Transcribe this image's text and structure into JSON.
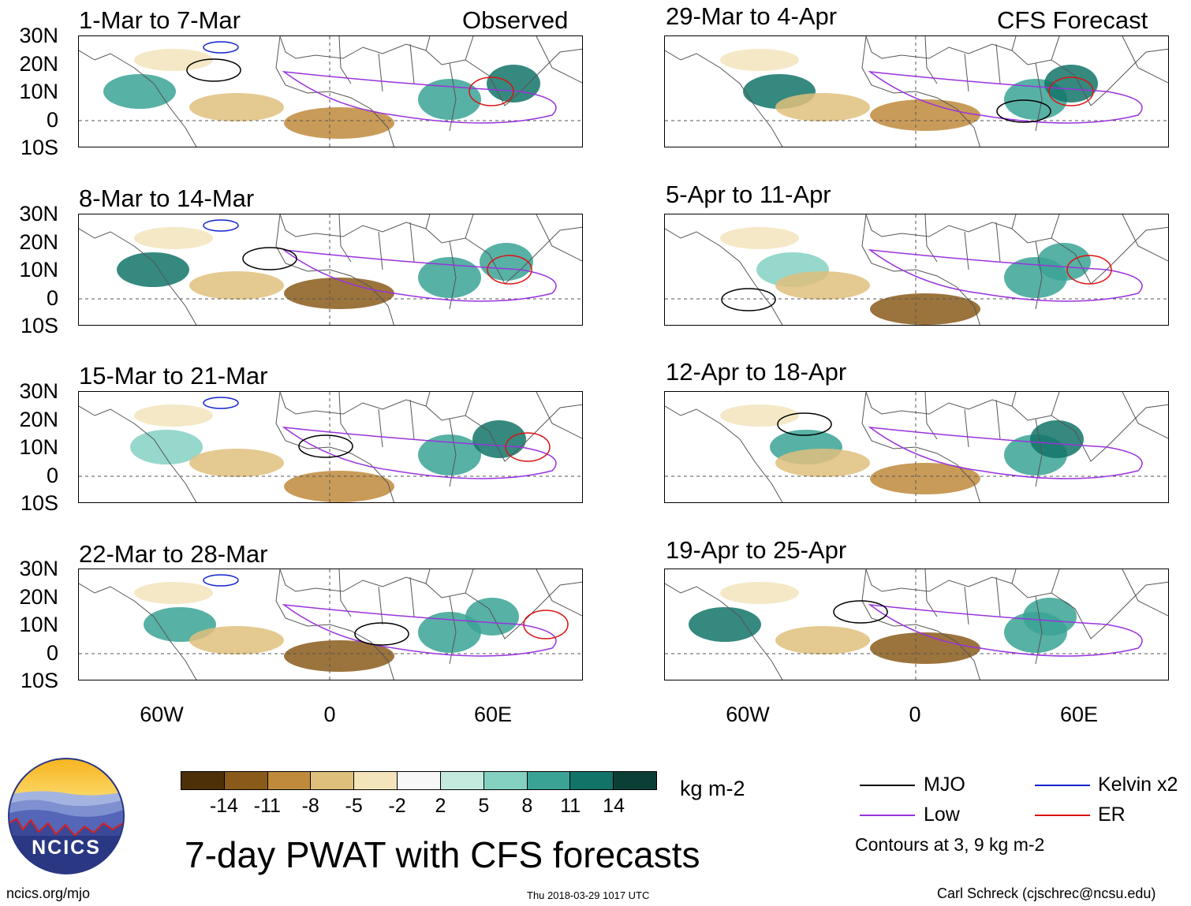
{
  "header": {
    "observed_label": "Observed",
    "forecast_label": "CFS Forecast"
  },
  "panels": [
    {
      "id": "p1",
      "column": "observed",
      "period": "1-Mar to 7-Mar"
    },
    {
      "id": "p2",
      "column": "observed",
      "period": "8-Mar to 14-Mar"
    },
    {
      "id": "p3",
      "column": "observed",
      "period": "15-Mar to 21-Mar"
    },
    {
      "id": "p4",
      "column": "observed",
      "period": "22-Mar to 28-Mar"
    },
    {
      "id": "p5",
      "column": "forecast",
      "period": "29-Mar to 4-Apr"
    },
    {
      "id": "p6",
      "column": "forecast",
      "period": "5-Apr to 11-Apr"
    },
    {
      "id": "p7",
      "column": "forecast",
      "period": "12-Apr to 18-Apr"
    },
    {
      "id": "p8",
      "column": "forecast",
      "period": "19-Apr to 25-Apr"
    }
  ],
  "axes": {
    "lat_labels": [
      "30N",
      "20N",
      "10N",
      "0",
      "10S"
    ],
    "lon_labels": [
      "60W",
      "0",
      "60E"
    ]
  },
  "colorbar": {
    "unit": "kg m-2",
    "tick_labels": [
      "-14",
      "-11",
      "-8",
      "-5",
      "-2",
      "2",
      "5",
      "8",
      "11",
      "14"
    ],
    "colors": [
      "#4d3008",
      "#8a5a1a",
      "#bf8a3c",
      "#dfbf7c",
      "#f3e4bc",
      "#f7f7f7",
      "#c4eade",
      "#84d1c2",
      "#3aa395",
      "#127468",
      "#0b3f36"
    ]
  },
  "legend": {
    "mjo": "MJO",
    "low": "Low",
    "kelvin": "Kelvin x2",
    "er": "ER",
    "note": "Contours at 3, 9 kg m-2",
    "colors": {
      "mjo": "#000000",
      "low": "#9933dd",
      "kelvin": "#1122cc",
      "er": "#dd1111"
    }
  },
  "footer": {
    "main_title": "7-day PWAT with CFS forecasts",
    "url": "ncics.org/mjo",
    "timestamp": "Thu 2018-03-29 1017 UTC",
    "author": "Carl Schreck (cjschrec@ncsu.edu)",
    "logo_text": "NCICS"
  }
}
